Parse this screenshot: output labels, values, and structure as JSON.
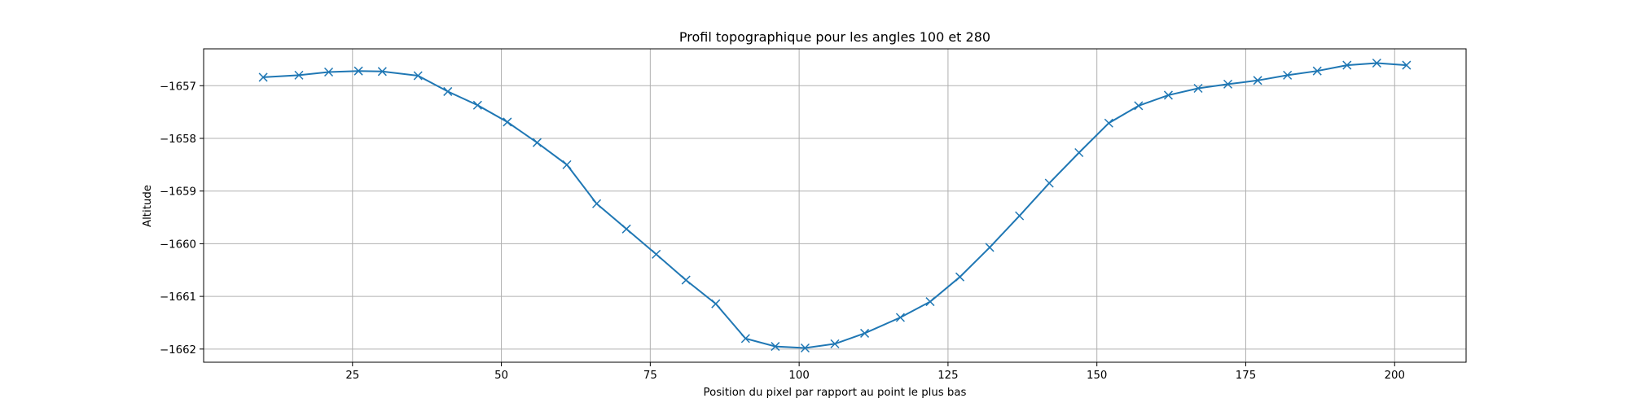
{
  "chart_data": {
    "type": "line",
    "title": "Profil topographique pour les angles 100 et 280",
    "xlabel": "Position du pixel par rapport au point le plus bas",
    "ylabel": "Altitude",
    "xlim": [
      0,
      212
    ],
    "ylim": [
      -1662.25,
      -1656.3
    ],
    "xticks": [
      25,
      50,
      75,
      100,
      125,
      150,
      175,
      200
    ],
    "yticks": [
      -1662,
      -1661,
      -1660,
      -1659,
      -1658,
      -1657
    ],
    "grid": true,
    "marker": "x",
    "color": "#1f77b4",
    "series": [
      {
        "x": [
          10,
          16,
          21,
          26,
          30,
          36,
          41,
          46,
          51,
          56,
          61,
          66,
          71,
          76,
          81,
          86,
          91,
          96,
          101,
          106,
          111,
          117,
          122,
          127,
          132,
          137,
          142,
          147,
          152,
          157,
          162,
          167,
          172,
          177,
          182,
          187,
          192,
          197,
          202
        ],
        "y": [
          -1656.84,
          -1656.8,
          -1656.74,
          -1656.72,
          -1656.73,
          -1656.81,
          -1657.11,
          -1657.37,
          -1657.69,
          -1658.08,
          -1658.5,
          -1659.24,
          -1659.72,
          -1660.2,
          -1660.69,
          -1661.14,
          -1661.8,
          -1661.95,
          -1661.98,
          -1661.9,
          -1661.7,
          -1661.4,
          -1661.1,
          -1660.63,
          -1660.07,
          -1659.47,
          -1658.85,
          -1658.27,
          -1657.71,
          -1657.38,
          -1657.18,
          -1657.05,
          -1656.97,
          -1656.9,
          -1656.8,
          -1656.72,
          -1656.61,
          -1656.57,
          -1656.61
        ]
      }
    ]
  }
}
